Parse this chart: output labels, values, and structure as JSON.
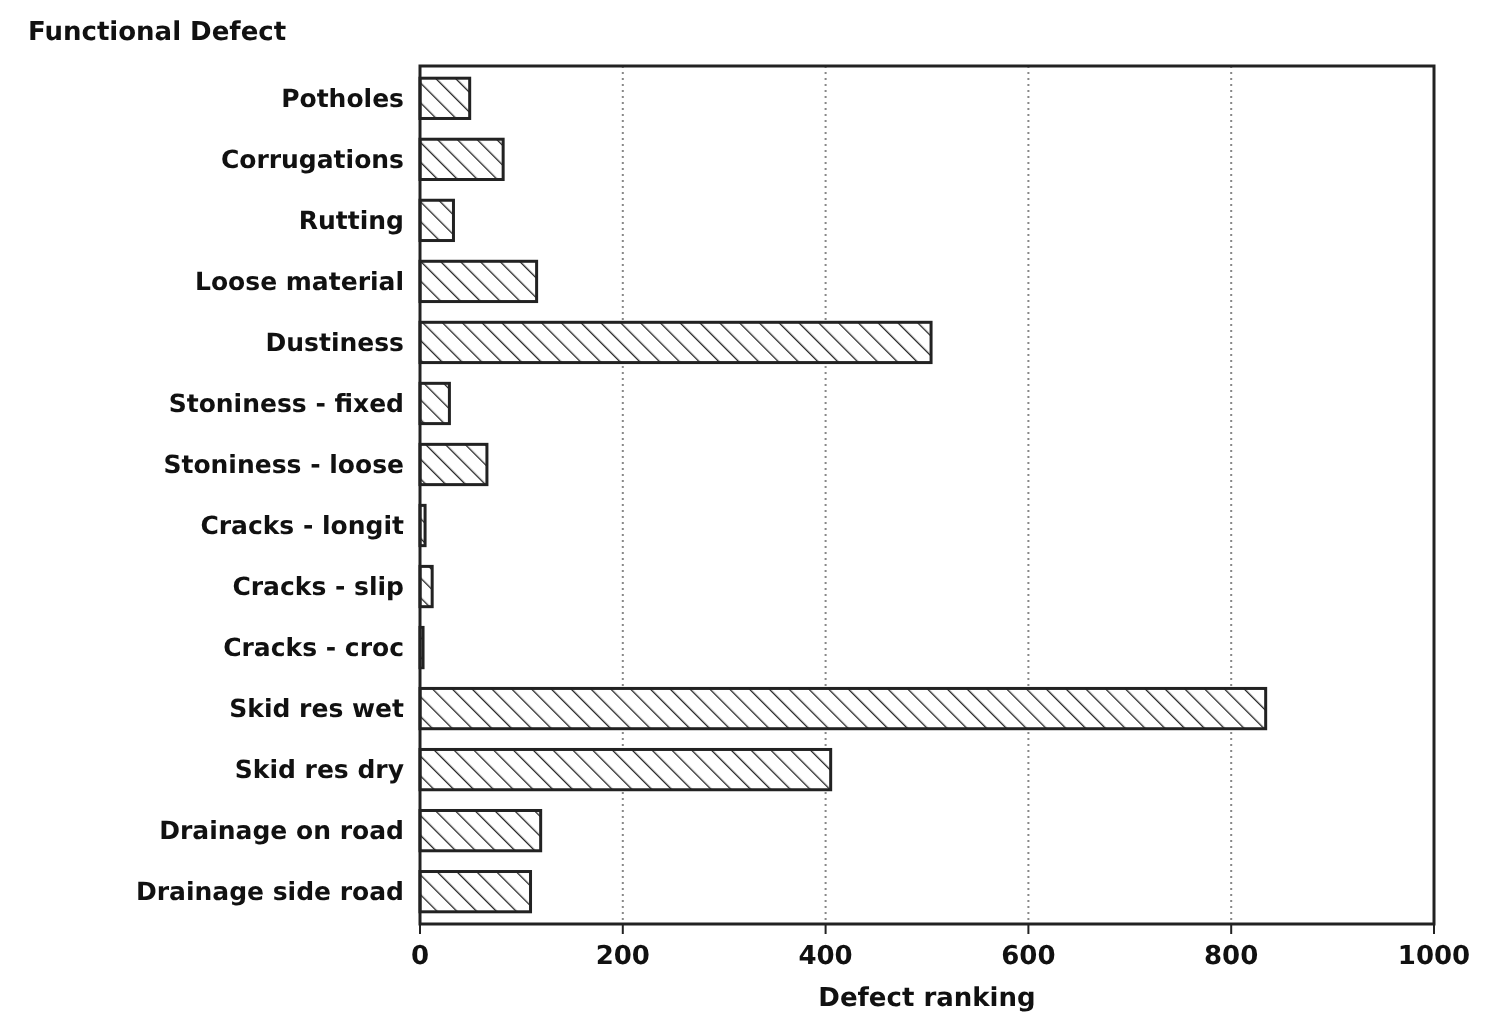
{
  "chart_data": {
    "type": "bar",
    "orientation": "horizontal",
    "title": "Functional Defect",
    "xlabel": "Defect ranking",
    "categories": [
      "Potholes",
      "Corrugations",
      "Rutting",
      "Loose material",
      "Dustiness",
      "Stoniness - fixed",
      "Stoniness - loose",
      "Cracks - longit",
      "Cracks - slip",
      "Cracks - croc",
      "Skid res wet",
      "Skid res dry",
      "Drainage on road",
      "Drainage side road"
    ],
    "values": [
      49,
      82,
      33,
      115,
      504,
      29,
      66,
      5,
      12,
      3,
      834,
      405,
      119,
      109
    ],
    "color": "#222222",
    "xlim": [
      0,
      1000
    ],
    "xticks": [
      0,
      200,
      400,
      600,
      800,
      1000
    ],
    "grid": "x"
  }
}
